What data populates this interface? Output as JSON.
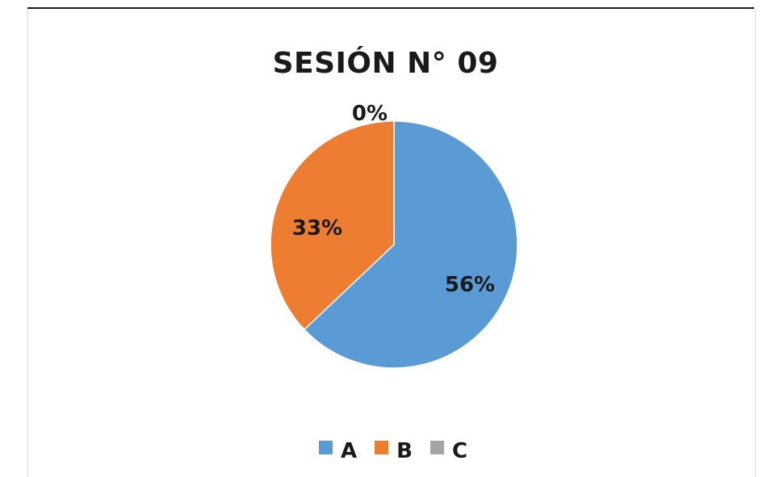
{
  "chart_data": {
    "type": "pie",
    "title": "SESIÓN N° 09",
    "categories": [
      "A",
      "B",
      "C"
    ],
    "values": [
      56,
      33,
      0
    ],
    "value_labels": [
      "56%",
      "33%",
      "0%"
    ],
    "colors": [
      "#5B9BD5",
      "#ED7D31",
      "#A5A5A5"
    ],
    "legend_position": "bottom"
  }
}
